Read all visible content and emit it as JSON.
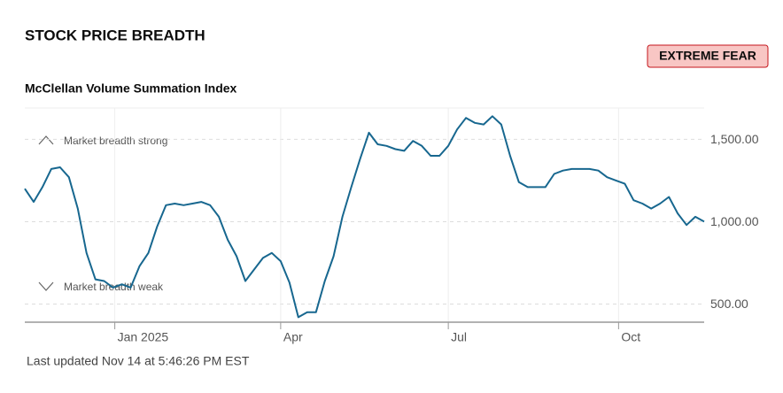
{
  "chart_data": {
    "type": "line",
    "title": "STOCK PRICE BREADTH",
    "status": "EXTREME FEAR",
    "subtitle": "McClellan Volume Summation Index",
    "annotations": [
      "Market breadth strong",
      "Market breadth weak"
    ],
    "footer": "Last updated Nov 14 at 5:46:26 PM EST",
    "series": [
      {
        "name": "McClellan Volume Summation Index",
        "color": "#17678f",
        "values": [
          1200,
          1120,
          1210,
          1320,
          1330,
          1270,
          1080,
          810,
          650,
          640,
          600,
          620,
          600,
          730,
          810,
          970,
          1100,
          1110,
          1100,
          1110,
          1120,
          1100,
          1030,
          890,
          790,
          640,
          710,
          780,
          810,
          760,
          630,
          420,
          450,
          450,
          640,
          790,
          1030,
          1210,
          1380,
          1540,
          1470,
          1460,
          1440,
          1430,
          1490,
          1460,
          1400,
          1400,
          1460,
          1560,
          1630,
          1600,
          1590,
          1640,
          1590,
          1400,
          1240,
          1210,
          1210,
          1210,
          1290,
          1310,
          1320,
          1320,
          1320,
          1310,
          1270,
          1250,
          1230,
          1130,
          1110,
          1080,
          1110,
          1150,
          1050,
          980,
          1030,
          1000
        ]
      }
    ],
    "xlim": [
      0,
      77
    ],
    "xticks": [
      {
        "value": 10.2,
        "label": "Jan 2025"
      },
      {
        "value": 29,
        "label": "Apr"
      },
      {
        "value": 48,
        "label": "Jul"
      },
      {
        "value": 67.3,
        "label": "Oct"
      }
    ],
    "ylim": [
      390,
      1690
    ],
    "yticks": [
      {
        "value": 500,
        "label": "500.00"
      },
      {
        "value": 1000,
        "label": "1,000.00"
      },
      {
        "value": 1500,
        "label": "1,500.00"
      }
    ],
    "grid": true
  }
}
